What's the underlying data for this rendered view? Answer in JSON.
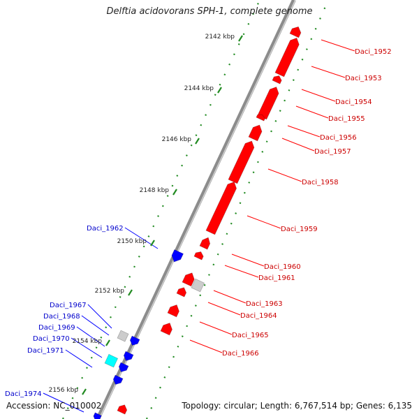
{
  "title": "Delftia acidovorans SPH-1, complete genome",
  "footer": {
    "accession": "Accession: NC_010002",
    "summary": "Topology: circular; Length: 6,767,514 bp; Genes: 6,135"
  },
  "colors": {
    "forward_gene": "#ff0000",
    "reverse_gene": "#0000ff",
    "other_gene": "#cccccc",
    "rna_gene": "#00ffff",
    "forward_label": "#cc0000",
    "reverse_label": "#0000cc",
    "tick": "#228b22",
    "backbone": "#8c8c8c"
  },
  "scale_ticks": [
    "2142 kbp",
    "2144 kbp",
    "2146 kbp",
    "2148 kbp",
    "2150 kbp",
    "2152 kbp",
    "2154 kbp",
    "2156 kbp"
  ],
  "genes_forward": [
    "Daci_1952",
    "Daci_1953",
    "Daci_1954",
    "Daci_1955",
    "Daci_1956",
    "Daci_1957",
    "Daci_1958",
    "Daci_1959",
    "Daci_1960",
    "Daci_1961",
    "Daci_1963",
    "Daci_1964",
    "Daci_1965",
    "Daci_1966"
  ],
  "genes_reverse": [
    "Daci_1962",
    "Daci_1967",
    "Daci_1968",
    "Daci_1969",
    "Daci_1970",
    "Daci_1971",
    "Daci_1974"
  ]
}
